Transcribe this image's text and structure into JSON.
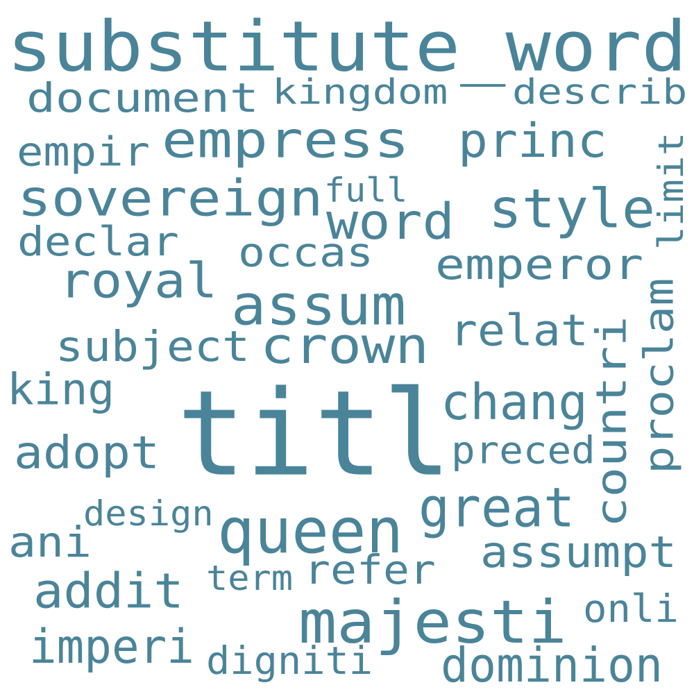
{
  "cloud": {
    "color": "#4a8499",
    "words": [
      {
        "text": "substitute_word",
        "weight": 1.0
      },
      {
        "text": "document",
        "weight": 0.55
      },
      {
        "text": "kingdom",
        "weight": 0.48
      },
      {
        "text": "describ",
        "weight": 0.48
      },
      {
        "text": "empress",
        "weight": 0.68
      },
      {
        "text": "princ",
        "weight": 0.62
      },
      {
        "text": "empir",
        "weight": 0.48
      },
      {
        "text": "limit",
        "weight": 0.42
      },
      {
        "text": "full",
        "weight": 0.4
      },
      {
        "text": "sovereign",
        "weight": 0.68
      },
      {
        "text": "style",
        "weight": 0.65
      },
      {
        "text": "word",
        "weight": 0.62
      },
      {
        "text": "declar",
        "weight": 0.52
      },
      {
        "text": "occas",
        "weight": 0.48
      },
      {
        "text": "emperor",
        "weight": 0.58
      },
      {
        "text": "royal",
        "weight": 0.66
      },
      {
        "text": "assum",
        "weight": 0.7
      },
      {
        "text": "proclam",
        "weight": 0.62
      },
      {
        "text": "relat",
        "weight": 0.55
      },
      {
        "text": "subject",
        "weight": 0.58
      },
      {
        "text": "crown",
        "weight": 0.7
      },
      {
        "text": "countri",
        "weight": 0.62
      },
      {
        "text": "king",
        "weight": 0.55
      },
      {
        "text": "titl",
        "weight": 1.35
      },
      {
        "text": "chang",
        "weight": 0.62
      },
      {
        "text": "adopt",
        "weight": 0.6
      },
      {
        "text": "preced",
        "weight": 0.52
      },
      {
        "text": "great",
        "weight": 0.68
      },
      {
        "text": "design",
        "weight": 0.45
      },
      {
        "text": "queen",
        "weight": 0.8
      },
      {
        "text": "ani",
        "weight": 0.58
      },
      {
        "text": "assumpt",
        "weight": 0.58
      },
      {
        "text": "refer",
        "weight": 0.55
      },
      {
        "text": "term",
        "weight": 0.45
      },
      {
        "text": "addit",
        "weight": 0.62
      },
      {
        "text": "majesti",
        "weight": 0.78
      },
      {
        "text": "onli",
        "weight": 0.48
      },
      {
        "text": "imperi",
        "weight": 0.6
      },
      {
        "text": "digniti",
        "weight": 0.5
      },
      {
        "text": "dominion",
        "weight": 0.58
      }
    ]
  }
}
